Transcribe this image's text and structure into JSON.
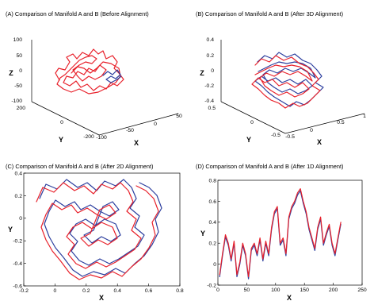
{
  "colors": {
    "manifold_a": "#e8202a",
    "manifold_b": "#2c3e9e",
    "axis": "#000000"
  },
  "chart_data": [
    {
      "id": "A",
      "type": "line3d",
      "title": "(A) Comparison of Manifold A and B (Before Alignment)",
      "xlabel": "X",
      "ylabel": "Y",
      "zlabel": "Z",
      "x_ticks": [
        "-100",
        "-50",
        "0",
        "50"
      ],
      "y_ticks": [
        "-200",
        "0",
        "200"
      ],
      "z_ticks": [
        "-100",
        "-50",
        "0",
        "50",
        "100"
      ],
      "xlim": [
        -100,
        50
      ],
      "ylim": [
        -200,
        200
      ],
      "zlim": [
        -100,
        100
      ]
    },
    {
      "id": "B",
      "type": "line3d",
      "title": "(B) Comparison of Manifold A and B (After 3D Alignment)",
      "xlabel": "X",
      "ylabel": "Y",
      "zlabel": "Z",
      "x_ticks": [
        "-0.5",
        "0",
        "0.5",
        "1"
      ],
      "y_ticks": [
        "-0.5",
        "0",
        "0.5"
      ],
      "z_ticks": [
        "-0.4",
        "-0.2",
        "0",
        "0.2",
        "0.4"
      ],
      "xlim": [
        -0.5,
        1
      ],
      "ylim": [
        -0.5,
        0.5
      ],
      "zlim": [
        -0.4,
        0.4
      ]
    },
    {
      "id": "C",
      "type": "line",
      "title": "(C) Comparison of Manifold A and B (After 2D Alignment)",
      "xlabel": "X",
      "ylabel": "Y",
      "xlim": [
        -0.2,
        0.8
      ],
      "ylim": [
        -0.6,
        0.4
      ],
      "x_ticks": [
        "-0.2",
        "0",
        "0.2",
        "0.4",
        "0.6",
        "0.8"
      ],
      "y_ticks": [
        "-0.6",
        "-0.4",
        "-0.2",
        "0",
        "0.2",
        "0.4"
      ],
      "x_tick_values": [
        -0.2,
        0,
        0.2,
        0.4,
        0.6,
        0.8
      ],
      "y_tick_values": [
        -0.6,
        -0.4,
        -0.2,
        0,
        0.2,
        0.4
      ]
    },
    {
      "id": "D",
      "type": "line",
      "title": "(D) Comparison of Manifold A and B (After 1D Alignment)",
      "xlabel": "X",
      "ylabel": "Y",
      "xlim": [
        0,
        250
      ],
      "ylim": [
        -0.2,
        0.8
      ],
      "x_ticks": [
        "0",
        "50",
        "100",
        "150",
        "200",
        "250"
      ],
      "y_ticks": [
        "-0.2",
        "0",
        "0.2",
        "0.4",
        "0.6",
        "0.8"
      ],
      "x_tick_values": [
        0,
        50,
        100,
        150,
        200,
        250
      ],
      "y_tick_values": [
        -0.2,
        0,
        0.2,
        0.4,
        0.6,
        0.8
      ],
      "series_x": [
        3,
        8,
        13,
        18,
        23,
        28,
        33,
        38,
        43,
        48,
        53,
        58,
        63,
        68,
        73,
        78,
        83,
        88,
        93,
        98,
        103,
        108,
        113,
        118,
        123,
        128,
        133,
        138,
        143,
        148,
        153,
        158,
        163,
        168,
        173,
        178,
        183,
        188,
        193,
        198,
        203,
        208,
        213
      ],
      "series_y": [
        -0.1,
        0.1,
        0.28,
        0.2,
        0.05,
        0.22,
        -0.1,
        0.02,
        0.2,
        0.1,
        -0.12,
        0.15,
        0.2,
        0.1,
        0.25,
        0.05,
        0.22,
        0.1,
        0.35,
        0.5,
        0.55,
        0.2,
        0.25,
        0.1,
        0.45,
        0.55,
        0.6,
        0.68,
        0.72,
        0.6,
        0.5,
        0.35,
        0.25,
        0.15,
        0.35,
        0.45,
        0.2,
        0.3,
        0.38,
        0.2,
        0.1,
        0.25,
        0.4
      ]
    }
  ]
}
